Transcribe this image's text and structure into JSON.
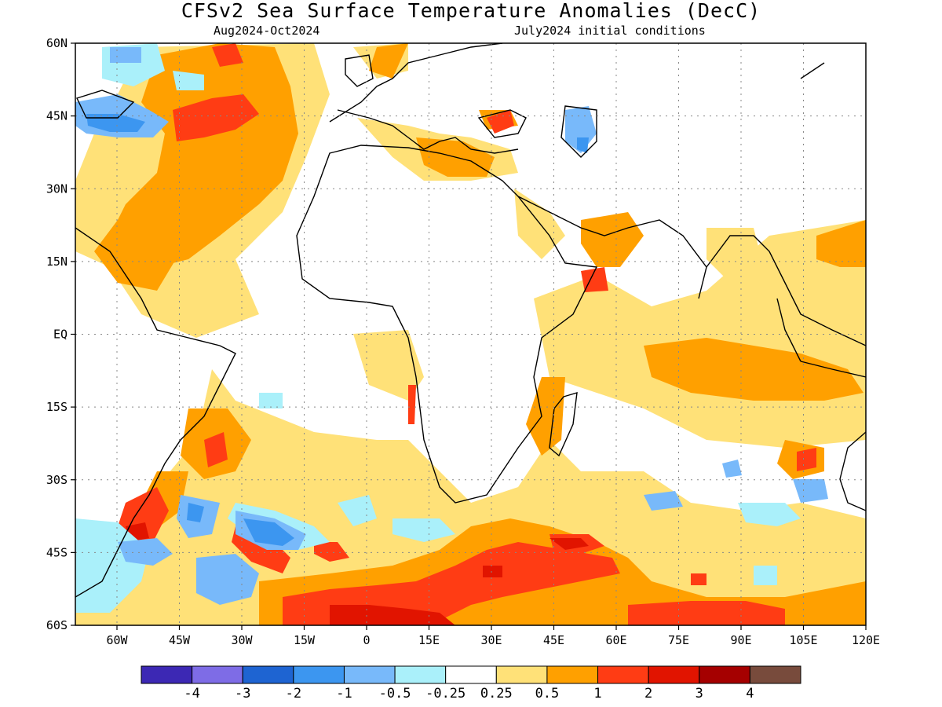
{
  "title": "CFSv2 Sea Surface Temperature Anomalies (DecC)",
  "subtitle_left": "Aug2024-Oct2024",
  "subtitle_right": "July2024 initial conditions",
  "map": {
    "lon_range": [
      -70,
      120
    ],
    "lat_range": [
      -60,
      60
    ],
    "lat_ticks": [
      {
        "value": 60,
        "label": "60N"
      },
      {
        "value": 45,
        "label": "45N"
      },
      {
        "value": 30,
        "label": "30N"
      },
      {
        "value": 15,
        "label": "15N"
      },
      {
        "value": 0,
        "label": "EQ"
      },
      {
        "value": -15,
        "label": "15S"
      },
      {
        "value": -30,
        "label": "30S"
      },
      {
        "value": -45,
        "label": "45S"
      },
      {
        "value": -60,
        "label": "60S"
      }
    ],
    "lon_ticks": [
      {
        "value": -60,
        "label": "60W"
      },
      {
        "value": -45,
        "label": "45W"
      },
      {
        "value": -30,
        "label": "30W"
      },
      {
        "value": -15,
        "label": "15W"
      },
      {
        "value": 0,
        "label": "0"
      },
      {
        "value": 15,
        "label": "15E"
      },
      {
        "value": 30,
        "label": "30E"
      },
      {
        "value": 45,
        "label": "45E"
      },
      {
        "value": 60,
        "label": "60E"
      },
      {
        "value": 75,
        "label": "75E"
      },
      {
        "value": 90,
        "label": "90E"
      },
      {
        "value": 105,
        "label": "105E"
      },
      {
        "value": 120,
        "label": "120E"
      }
    ]
  },
  "colorbar": {
    "colors": [
      "#3c28b4",
      "#7e6ce6",
      "#1e64d2",
      "#3c96f0",
      "#78b9fa",
      "#aaf0fa",
      "#ffffff",
      "#ffe178",
      "#ffa000",
      "#ff3c14",
      "#e11400",
      "#a50000",
      "#784b3c"
    ],
    "labels": [
      "-4",
      "-3",
      "-2",
      "-1",
      "-0.5",
      "-0.25",
      "0.25",
      "0.5",
      "1",
      "2",
      "3",
      "4"
    ]
  }
}
